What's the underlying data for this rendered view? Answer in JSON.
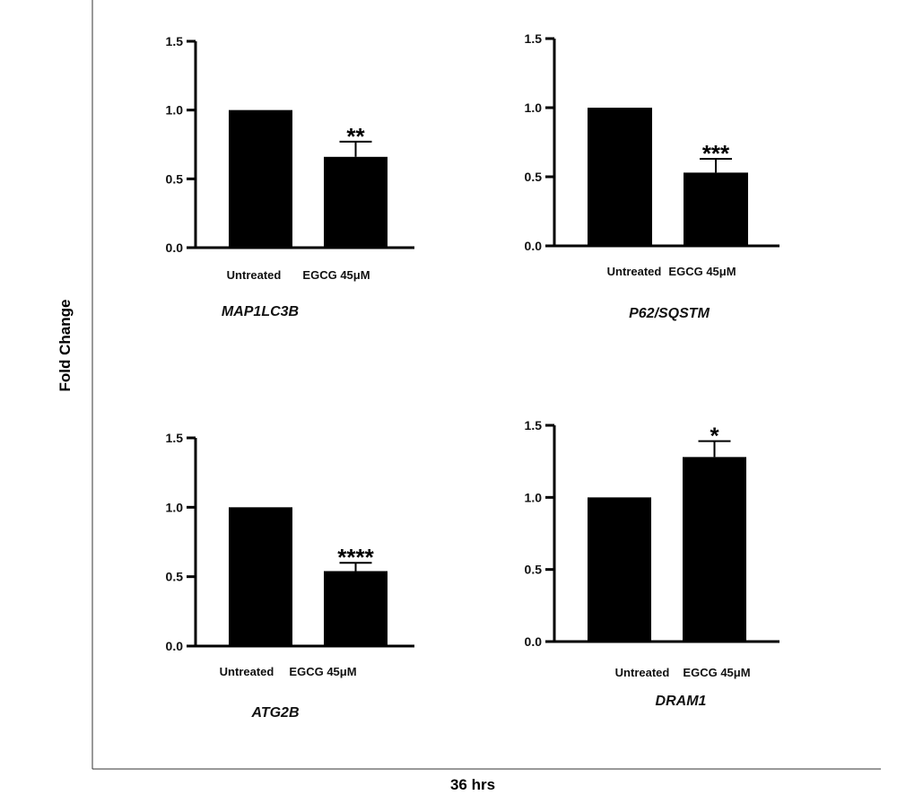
{
  "figure": {
    "ylabel": "Fold Change",
    "xlabel": "36 hrs"
  },
  "chart_data": [
    {
      "type": "bar",
      "title": "MAP1LC3B",
      "categories": [
        "Untreated",
        "EGCG 45μM"
      ],
      "values": [
        1.0,
        0.66
      ],
      "errors": [
        0,
        0.11
      ],
      "significance": [
        "",
        "**"
      ],
      "ylim": [
        0,
        1.5
      ],
      "yticks": [
        "0.0",
        "0.5",
        "1.0",
        "1.5"
      ],
      "bar_color": "#000000"
    },
    {
      "type": "bar",
      "title": "P62/SQSTM",
      "categories": [
        "Untreated",
        "EGCG 45μM"
      ],
      "values": [
        1.0,
        0.53
      ],
      "errors": [
        0,
        0.1
      ],
      "significance": [
        "",
        "***"
      ],
      "ylim": [
        0,
        1.5
      ],
      "yticks": [
        "0.0",
        "0.5",
        "1.0",
        "1.5"
      ],
      "bar_color": "#000000"
    },
    {
      "type": "bar",
      "title": "ATG2B",
      "categories": [
        "Untreated",
        "EGCG 45μM"
      ],
      "values": [
        1.0,
        0.54
      ],
      "errors": [
        0,
        0.06
      ],
      "significance": [
        "",
        "****"
      ],
      "ylim": [
        0,
        1.5
      ],
      "yticks": [
        "0.0",
        "0.5",
        "1.0",
        "1.5"
      ],
      "bar_color": "#000000"
    },
    {
      "type": "bar",
      "title": "DRAM1",
      "categories": [
        "Untreated",
        "EGCG 45μM"
      ],
      "values": [
        1.0,
        1.28
      ],
      "errors": [
        0,
        0.11
      ],
      "significance": [
        "",
        "*"
      ],
      "ylim": [
        0,
        1.5
      ],
      "yticks": [
        "0.0",
        "0.5",
        "1.0",
        "1.5"
      ],
      "bar_color": "#000000"
    }
  ]
}
